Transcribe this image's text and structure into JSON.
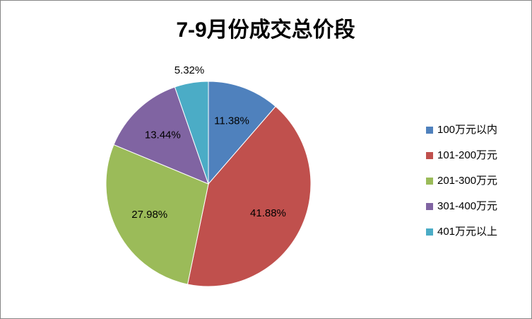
{
  "chart_data": {
    "type": "pie",
    "title": "7-9月份成交总价段",
    "categories": [
      "100万元以内",
      "101-200万元",
      "201-300万元",
      "301-400万元",
      "401万元以上"
    ],
    "values": [
      11.38,
      41.88,
      27.98,
      13.44,
      5.32
    ],
    "value_labels": [
      "11.38%",
      "41.88%",
      "27.98%",
      "13.44%",
      "5.32%"
    ],
    "colors": [
      "#4f81bd",
      "#c0504d",
      "#9bbb59",
      "#8064a2",
      "#4bacc6"
    ],
    "legend": "right"
  }
}
